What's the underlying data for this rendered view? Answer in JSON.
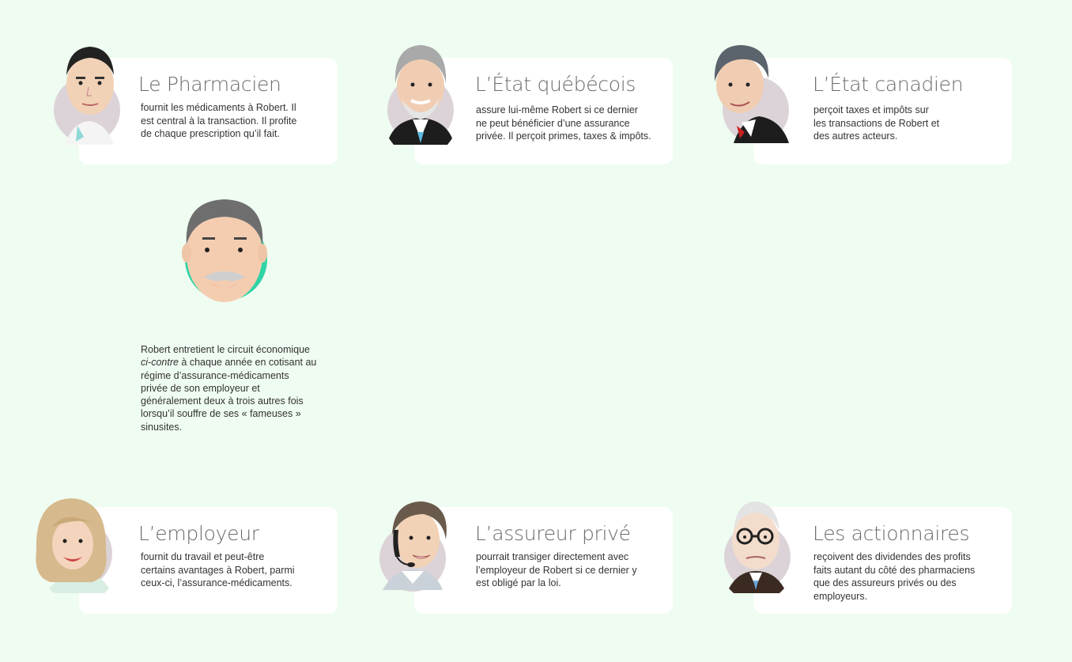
{
  "actors": [
    {
      "id": "pharmacien",
      "title": "Le Pharmacien",
      "lines": [
        "fournit les médicaments à Robert. Il",
        "est central à la transaction. Il profite",
        "de chaque prescription qu’il fait."
      ]
    },
    {
      "id": "etat-quebecois",
      "title": "L’État québécois",
      "lines": [
        "assure lui-même Robert si ce dernier",
        "ne peut bénéficier d’une assurance",
        "privée. Il perçoit primes, taxes & impôts."
      ]
    },
    {
      "id": "etat-canadien",
      "title": "L’État canadien",
      "lines": [
        "perçoit taxes et impôts sur",
        "les transactions de Robert et",
        "des autres acteurs."
      ]
    },
    {
      "id": "employeur",
      "title": "L’employeur",
      "lines": [
        "fournit du travail et peut-être",
        "certains avantages à Robert, parmi",
        "ceux-ci, l’assurance-médicaments."
      ]
    },
    {
      "id": "assureur-prive",
      "title": "L’assureur privé",
      "lines": [
        "pourrait transiger directement avec",
        "l’employeur de Robert si ce dernier y",
        "est obligé par la loi."
      ]
    },
    {
      "id": "actionnaires",
      "title": "Les actionnaires",
      "lines": [
        "reçoivent des dividendes des profits",
        "faits autant du côté des pharmaciens",
        "que des assureurs privés ou des",
        "employeurs."
      ]
    }
  ],
  "robert": {
    "intro": "Robert entretient le circuit économique",
    "emphasis": "ci-contre",
    "rest_first": " à chaque année en cotisant au",
    "lines": [
      "régime d’assurance-médicaments",
      "privée de son employeur et",
      "généralement deux à trois autres fois",
      "lorsqu’il souffre de ses « fameuses »",
      "sinusites."
    ]
  },
  "colors": {
    "background": "#effcf1",
    "card": "#ffffff",
    "avatar_circle": "#dcd3d8",
    "robert_circle": "#2fd3a7",
    "title": "#6b6b6b"
  }
}
